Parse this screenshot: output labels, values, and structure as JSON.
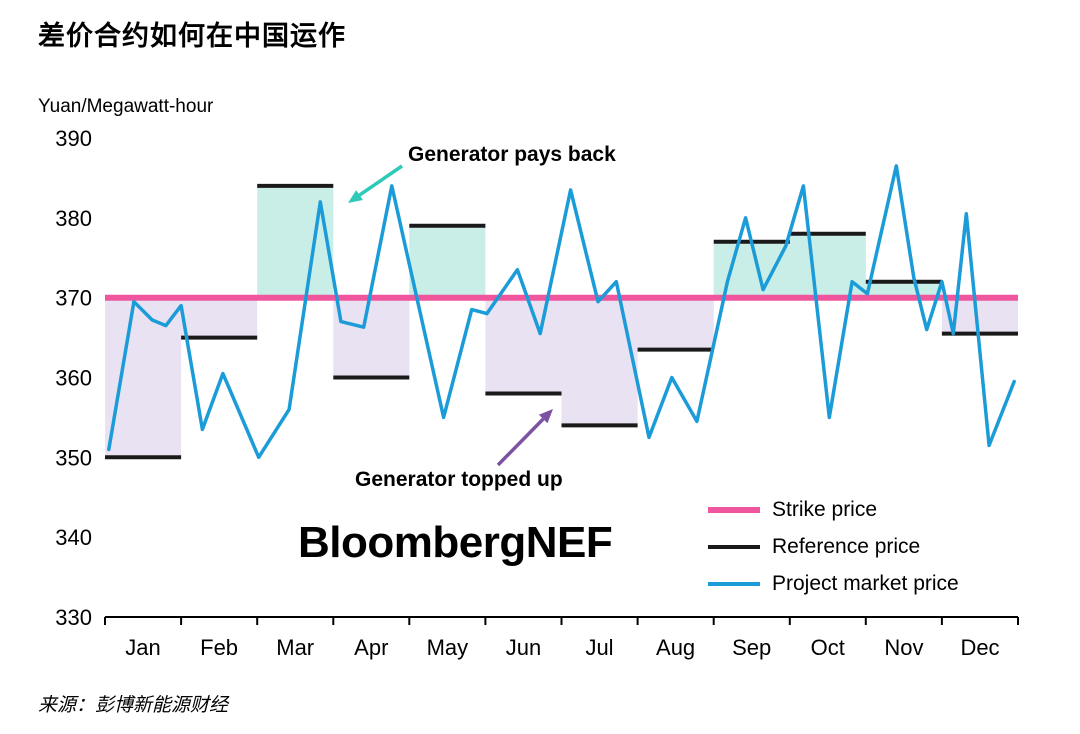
{
  "title": "差价合约如何在中国运作",
  "y_axis_title": "Yuan/Megawatt-hour",
  "logo": "BloombergNEF",
  "source": "来源：彭博新能源财经",
  "annotations": {
    "pays_back": {
      "text": "Generator pays back",
      "arrow_color": "#2ec9b8"
    },
    "topped_up": {
      "text": "Generator topped up",
      "arrow_color": "#7c52a3"
    }
  },
  "legend": [
    {
      "id": "strike",
      "label": "Strike price",
      "color": "#f0569e"
    },
    {
      "id": "reference",
      "label": "Reference price",
      "color": "#1a1a1a"
    },
    {
      "id": "market",
      "label": "Project market price",
      "color": "#1b9cd8"
    }
  ],
  "chart_data": {
    "type": "line",
    "title": "差价合约如何在中国运作",
    "ylabel": "Yuan/Megawatt-hour",
    "ylim": [
      330,
      390
    ],
    "yticks": [
      390,
      380,
      370,
      360,
      350,
      340,
      330
    ],
    "categories": [
      "Jan",
      "Feb",
      "Mar",
      "Apr",
      "May",
      "Jun",
      "Jul",
      "Aug",
      "Sep",
      "Oct",
      "Nov",
      "Dec"
    ],
    "grid": false,
    "legend_position": "lower right",
    "strike_price": 370,
    "series": [
      {
        "name": "Reference price",
        "type": "monthly-step",
        "values": [
          350,
          365,
          384,
          360,
          379,
          358,
          354,
          363.5,
          377,
          378,
          372,
          365.5
        ]
      },
      {
        "name": "Project market price",
        "type": "line",
        "points": [
          [
            0.05,
            351
          ],
          [
            0.38,
            369.5
          ],
          [
            0.62,
            367.2
          ],
          [
            0.8,
            366.5
          ],
          [
            1.0,
            369
          ],
          [
            1.28,
            353.5
          ],
          [
            1.55,
            360.5
          ],
          [
            2.02,
            350
          ],
          [
            2.42,
            356
          ],
          [
            2.83,
            382
          ],
          [
            3.1,
            367
          ],
          [
            3.4,
            366.3
          ],
          [
            3.77,
            384
          ],
          [
            4.45,
            355
          ],
          [
            4.82,
            368.5
          ],
          [
            5.02,
            368
          ],
          [
            5.42,
            373.5
          ],
          [
            5.72,
            365.5
          ],
          [
            6.12,
            383.5
          ],
          [
            6.48,
            369.5
          ],
          [
            6.72,
            372
          ],
          [
            7.15,
            352.5
          ],
          [
            7.45,
            360
          ],
          [
            7.78,
            354.5
          ],
          [
            8.18,
            372
          ],
          [
            8.42,
            380
          ],
          [
            8.65,
            371
          ],
          [
            8.95,
            376.5
          ],
          [
            9.18,
            384
          ],
          [
            9.52,
            355
          ],
          [
            9.82,
            372
          ],
          [
            10.02,
            370.5
          ],
          [
            10.4,
            386.5
          ],
          [
            10.63,
            372.5
          ],
          [
            10.8,
            366
          ],
          [
            11.0,
            372
          ],
          [
            11.15,
            365.5
          ],
          [
            11.32,
            380.5
          ],
          [
            11.62,
            351.5
          ],
          [
            11.95,
            359.5
          ]
        ]
      }
    ],
    "colors": {
      "strike": "#f0569e",
      "reference": "#1a1a1a",
      "market": "#1b9cd8",
      "fill_payback": "#c9eee7",
      "fill_topup": "#e9e2f2"
    },
    "fill_meaning": {
      "payback": "Reference price above strike price: Generator pays back",
      "topup": "Reference price below strike price: Generator topped up"
    }
  }
}
